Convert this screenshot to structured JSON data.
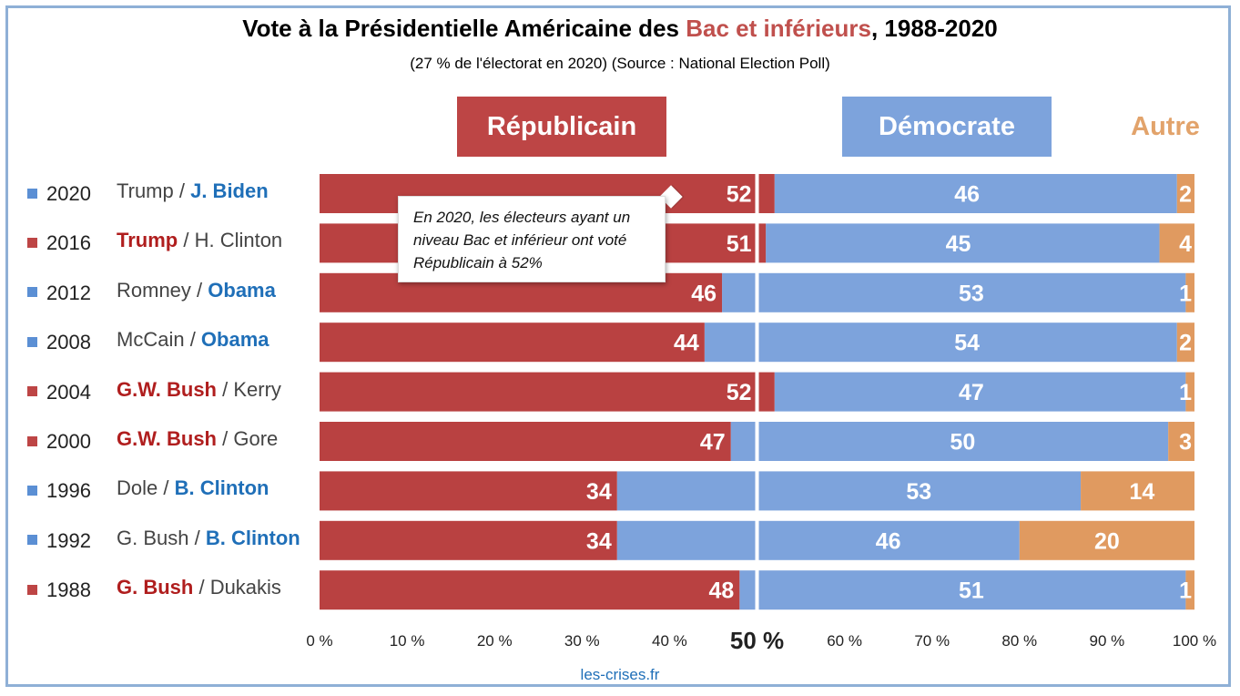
{
  "chart_data": {
    "type": "bar",
    "orientation": "horizontal",
    "stacked": true,
    "title_parts": [
      "Vote à la Présidentielle Américaine des ",
      "Bac et inférieurs",
      ", 1988-2020"
    ],
    "subtitle": "(27 % de l'électorat en 2020) (Source : National Election Poll)",
    "headers": {
      "rep": "Républicain",
      "dem": "Démocrate",
      "autre": "Autre"
    },
    "categories": [
      "2020",
      "2016",
      "2012",
      "2008",
      "2004",
      "2000",
      "1996",
      "1992",
      "1988"
    ],
    "rows": [
      {
        "year": "2020",
        "winner": "dem",
        "rep": "Trump",
        "dem": "J. Biden"
      },
      {
        "year": "2016",
        "winner": "rep",
        "rep": "Trump",
        "dem": "H. Clinton"
      },
      {
        "year": "2012",
        "winner": "dem",
        "rep": "Romney",
        "dem": "Obama"
      },
      {
        "year": "2008",
        "winner": "dem",
        "rep": "McCain",
        "dem": "Obama"
      },
      {
        "year": "2004",
        "winner": "rep",
        "rep": "G.W. Bush",
        "dem": "Kerry"
      },
      {
        "year": "2000",
        "winner": "rep",
        "rep": "G.W. Bush",
        "dem": "Gore"
      },
      {
        "year": "1996",
        "winner": "dem",
        "rep": "Dole",
        "dem": "B. Clinton"
      },
      {
        "year": "1992",
        "winner": "dem",
        "rep": "G. Bush",
        "dem": "B. Clinton"
      },
      {
        "year": "1988",
        "winner": "rep",
        "rep": "G. Bush",
        "dem": "Dukakis"
      }
    ],
    "series": [
      {
        "name": "Républicain",
        "color": "#b94141",
        "values": [
          52,
          51,
          46,
          44,
          52,
          47,
          34,
          34,
          48
        ]
      },
      {
        "name": "Démocrate",
        "color": "#7da3dc",
        "values": [
          46,
          45,
          53,
          54,
          47,
          50,
          53,
          46,
          51
        ]
      },
      {
        "name": "Autre",
        "color": "#e09a60",
        "values": [
          2,
          4,
          1,
          2,
          1,
          3,
          14,
          20,
          1
        ]
      }
    ],
    "xlim": [
      0,
      100
    ],
    "xticks": [
      "0 %",
      "10 %",
      "20 %",
      "30 %",
      "40 %",
      "50 %",
      "60 %",
      "70 %",
      "80 %",
      "90 %",
      "100 %"
    ],
    "reference_line": 50,
    "annotation": "En 2020, les électeurs ayant un niveau Bac et inférieur ont voté Républicain à 52%"
  },
  "colors": {
    "rep_square": "#bd4545",
    "dem_square": "#5b8fd4"
  },
  "source": "les-crises.fr"
}
